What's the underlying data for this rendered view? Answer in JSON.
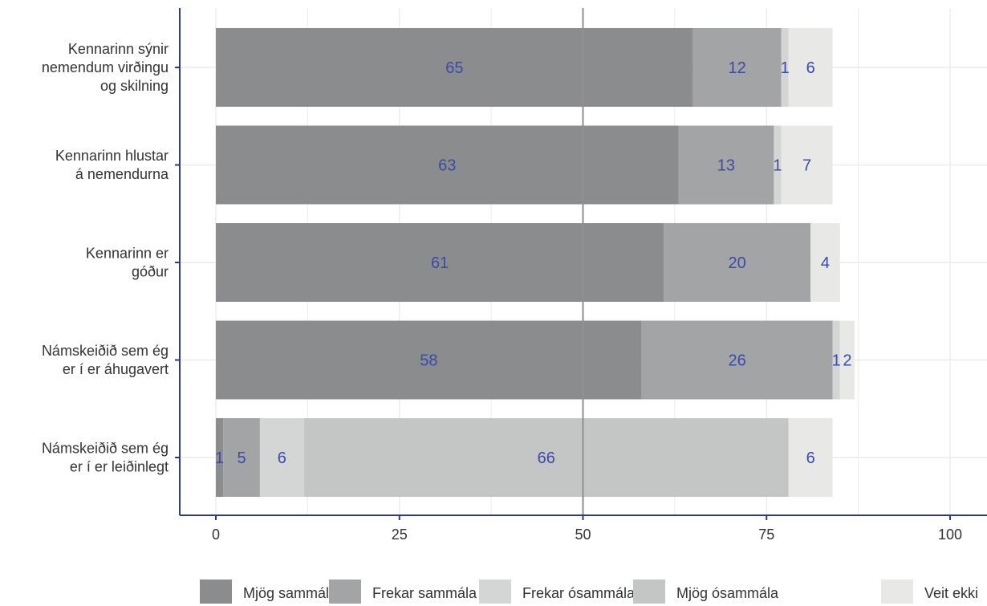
{
  "chart_data": {
    "type": "bar",
    "orientation": "horizontal",
    "stacked": true,
    "categories": [
      [
        "Kennarinn sýnir",
        "nemendum virðingu",
        "og skilning"
      ],
      [
        "Kennarinn hlustar",
        "á nemendurna"
      ],
      [
        "Kennarinn er",
        "góður"
      ],
      [
        "Námskeiðið sem ég",
        "er í er áhugavert"
      ],
      [
        "Námskeiðið sem ég",
        "er í er leiðinlegt"
      ]
    ],
    "series": [
      {
        "name": "Mjög sammála",
        "color": "#8b8c8d",
        "values": [
          65,
          63,
          61,
          58,
          1
        ]
      },
      {
        "name": "Frekar sammála",
        "color": "#a2a4a5",
        "values": [
          12,
          13,
          20,
          26,
          5
        ]
      },
      {
        "name": "Frekar ósammála",
        "color": "#d4d5d5",
        "values": [
          1,
          1,
          0,
          1,
          6
        ]
      },
      {
        "name": "Mjög ósammála",
        "color": "#c4c5c5",
        "values": [
          0,
          0,
          0,
          0,
          66
        ]
      },
      {
        "name": "Veit ekki",
        "color": "#e8e9e7",
        "values": [
          6,
          7,
          4,
          2,
          6
        ]
      }
    ],
    "xlim": [
      0,
      100
    ],
    "xticks": [
      0,
      25,
      50,
      75,
      100
    ],
    "reference_line": 50,
    "grid": true,
    "legend_position": "bottom",
    "label_color": "#3a4aa8",
    "axis_color": "#2b3a8a"
  }
}
